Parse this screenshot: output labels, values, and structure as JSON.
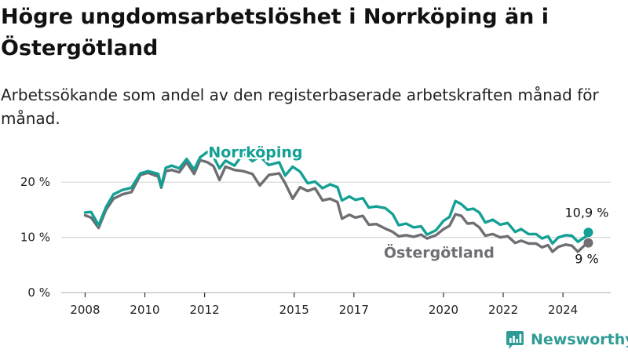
{
  "title": "Högre ungdomsarbetslöshet i Norrköping än i Östergötland",
  "subtitle": "Arbetssökande som andel av den registerbaserade arbetskraften månad för månad.",
  "brand": {
    "name": "Newsworthy"
  },
  "colors": {
    "norrkoping": "#14a095",
    "ostergotland": "#6e6e73",
    "grid": "#d9d9d9"
  },
  "chart_data": {
    "type": "line",
    "title": "Högre ungdomsarbetslöshet i Norrköping än i Östergötland",
    "subtitle": "Arbetssökande som andel av den registerbaserade arbetskraften månad för månad.",
    "xlabel": "",
    "ylabel": "",
    "x_ticks": [
      2008,
      2010,
      2012,
      2015,
      2017,
      2020,
      2022,
      2024
    ],
    "x_range": [
      2007.2,
      2025.6
    ],
    "y_ticks": [
      {
        "value": 0,
        "label": "0 %"
      },
      {
        "value": 10,
        "label": "10 %"
      },
      {
        "value": 20,
        "label": "20 %"
      }
    ],
    "ylim": [
      0,
      26
    ],
    "grid": "horizontal",
    "series": [
      {
        "name": "Norrköping",
        "color": "#14a095",
        "end_label": "10,9 %",
        "points": [
          [
            2008.0,
            14.5
          ],
          [
            2008.2,
            14.6
          ],
          [
            2008.45,
            12.2
          ],
          [
            2008.7,
            15.5
          ],
          [
            2008.95,
            17.8
          ],
          [
            2009.25,
            18.6
          ],
          [
            2009.55,
            19.0
          ],
          [
            2009.85,
            21.6
          ],
          [
            2010.1,
            22.0
          ],
          [
            2010.45,
            21.5
          ],
          [
            2010.55,
            19.2
          ],
          [
            2010.7,
            22.6
          ],
          [
            2010.9,
            23.0
          ],
          [
            2011.15,
            22.5
          ],
          [
            2011.4,
            24.2
          ],
          [
            2011.65,
            22.3
          ],
          [
            2011.85,
            24.5
          ],
          [
            2012.1,
            25.5
          ],
          [
            2012.3,
            24.6
          ],
          [
            2012.5,
            22.5
          ],
          [
            2012.7,
            23.9
          ],
          [
            2013.0,
            23.0
          ],
          [
            2013.3,
            25.2
          ],
          [
            2013.6,
            23.8
          ],
          [
            2013.85,
            24.7
          ],
          [
            2014.15,
            23.1
          ],
          [
            2014.5,
            23.6
          ],
          [
            2014.7,
            21.2
          ],
          [
            2014.95,
            22.8
          ],
          [
            2015.2,
            21.9
          ],
          [
            2015.45,
            19.8
          ],
          [
            2015.7,
            20.1
          ],
          [
            2015.95,
            18.9
          ],
          [
            2016.2,
            19.6
          ],
          [
            2016.45,
            19.1
          ],
          [
            2016.6,
            16.7
          ],
          [
            2016.85,
            17.4
          ],
          [
            2017.05,
            16.8
          ],
          [
            2017.3,
            17.1
          ],
          [
            2017.5,
            15.4
          ],
          [
            2017.75,
            15.6
          ],
          [
            2018.05,
            15.3
          ],
          [
            2018.3,
            14.2
          ],
          [
            2018.5,
            12.2
          ],
          [
            2018.75,
            12.5
          ],
          [
            2019.0,
            11.8
          ],
          [
            2019.25,
            12.0
          ],
          [
            2019.45,
            10.5
          ],
          [
            2019.75,
            11.3
          ],
          [
            2020.0,
            13.0
          ],
          [
            2020.2,
            13.7
          ],
          [
            2020.4,
            16.6
          ],
          [
            2020.6,
            16.0
          ],
          [
            2020.8,
            15.0
          ],
          [
            2021.0,
            15.2
          ],
          [
            2021.2,
            14.5
          ],
          [
            2021.4,
            12.7
          ],
          [
            2021.65,
            13.2
          ],
          [
            2021.9,
            12.3
          ],
          [
            2022.15,
            12.6
          ],
          [
            2022.4,
            11.0
          ],
          [
            2022.6,
            11.5
          ],
          [
            2022.85,
            10.6
          ],
          [
            2023.1,
            10.6
          ],
          [
            2023.3,
            9.8
          ],
          [
            2023.5,
            10.2
          ],
          [
            2023.65,
            8.9
          ],
          [
            2023.85,
            10.0
          ],
          [
            2024.1,
            10.4
          ],
          [
            2024.3,
            10.3
          ],
          [
            2024.5,
            9.2
          ],
          [
            2024.75,
            10.1
          ],
          [
            2024.85,
            10.9
          ]
        ]
      },
      {
        "name": "Östergötland",
        "color": "#6e6e73",
        "end_label": "9 %",
        "points": [
          [
            2008.0,
            14.0
          ],
          [
            2008.2,
            13.6
          ],
          [
            2008.45,
            11.7
          ],
          [
            2008.7,
            15.0
          ],
          [
            2008.95,
            17.0
          ],
          [
            2009.25,
            17.8
          ],
          [
            2009.55,
            18.2
          ],
          [
            2009.85,
            21.3
          ],
          [
            2010.1,
            21.7
          ],
          [
            2010.45,
            21.0
          ],
          [
            2010.55,
            19.0
          ],
          [
            2010.7,
            22.0
          ],
          [
            2010.9,
            22.2
          ],
          [
            2011.15,
            21.8
          ],
          [
            2011.4,
            23.6
          ],
          [
            2011.65,
            21.5
          ],
          [
            2011.85,
            24.0
          ],
          [
            2012.1,
            23.6
          ],
          [
            2012.3,
            22.9
          ],
          [
            2012.5,
            20.4
          ],
          [
            2012.7,
            22.8
          ],
          [
            2013.0,
            22.2
          ],
          [
            2013.3,
            22.0
          ],
          [
            2013.6,
            21.5
          ],
          [
            2013.85,
            19.4
          ],
          [
            2014.15,
            21.3
          ],
          [
            2014.5,
            21.6
          ],
          [
            2014.7,
            19.8
          ],
          [
            2014.95,
            17.0
          ],
          [
            2015.2,
            19.1
          ],
          [
            2015.45,
            18.4
          ],
          [
            2015.7,
            18.9
          ],
          [
            2015.95,
            16.7
          ],
          [
            2016.2,
            17.0
          ],
          [
            2016.45,
            16.4
          ],
          [
            2016.6,
            13.4
          ],
          [
            2016.85,
            14.1
          ],
          [
            2017.05,
            13.6
          ],
          [
            2017.3,
            13.9
          ],
          [
            2017.5,
            12.3
          ],
          [
            2017.75,
            12.4
          ],
          [
            2018.05,
            11.6
          ],
          [
            2018.3,
            11.0
          ],
          [
            2018.5,
            10.2
          ],
          [
            2018.75,
            10.4
          ],
          [
            2019.0,
            10.1
          ],
          [
            2019.25,
            10.5
          ],
          [
            2019.45,
            9.8
          ],
          [
            2019.75,
            10.4
          ],
          [
            2020.0,
            11.5
          ],
          [
            2020.2,
            12.1
          ],
          [
            2020.4,
            14.2
          ],
          [
            2020.6,
            13.9
          ],
          [
            2020.8,
            12.5
          ],
          [
            2021.0,
            12.6
          ],
          [
            2021.2,
            11.8
          ],
          [
            2021.4,
            10.3
          ],
          [
            2021.65,
            10.6
          ],
          [
            2021.9,
            10.0
          ],
          [
            2022.15,
            10.2
          ],
          [
            2022.4,
            9.0
          ],
          [
            2022.6,
            9.4
          ],
          [
            2022.85,
            8.9
          ],
          [
            2023.1,
            8.9
          ],
          [
            2023.3,
            8.2
          ],
          [
            2023.5,
            8.6
          ],
          [
            2023.65,
            7.4
          ],
          [
            2023.85,
            8.3
          ],
          [
            2024.1,
            8.7
          ],
          [
            2024.3,
            8.5
          ],
          [
            2024.5,
            7.4
          ],
          [
            2024.75,
            8.7
          ],
          [
            2024.85,
            9.0
          ]
        ]
      }
    ]
  }
}
